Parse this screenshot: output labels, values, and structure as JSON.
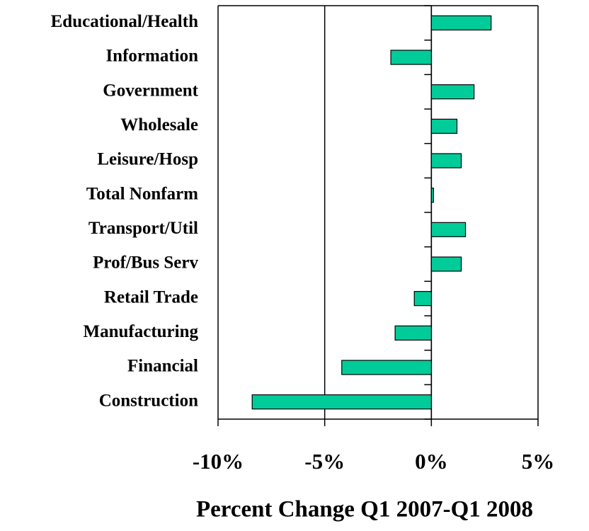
{
  "chart_data": {
    "type": "bar",
    "orientation": "horizontal",
    "x_label": "Percent Change Q1 2007-Q1 2008",
    "categories": [
      "Educational/Health",
      "Information",
      "Government",
      "Wholesale",
      "Leisure/Hosp",
      "Total Nonfarm",
      "Transport/Util",
      "Prof/Bus Serv",
      "Retail Trade",
      "Manufacturing",
      "Financial",
      "Construction"
    ],
    "values": [
      2.8,
      -1.9,
      2.0,
      1.2,
      1.4,
      0.1,
      1.6,
      1.4,
      -0.8,
      -1.7,
      -4.2,
      -8.4
    ],
    "color": "#00cc99",
    "xlim": [
      -10,
      5
    ],
    "xticks": [
      {
        "value": -10,
        "label": "-10%"
      },
      {
        "value": -5,
        "label": "-5%"
      },
      {
        "value": 0,
        "label": "0%"
      },
      {
        "value": 5,
        "label": "5%"
      }
    ],
    "grid": true
  }
}
